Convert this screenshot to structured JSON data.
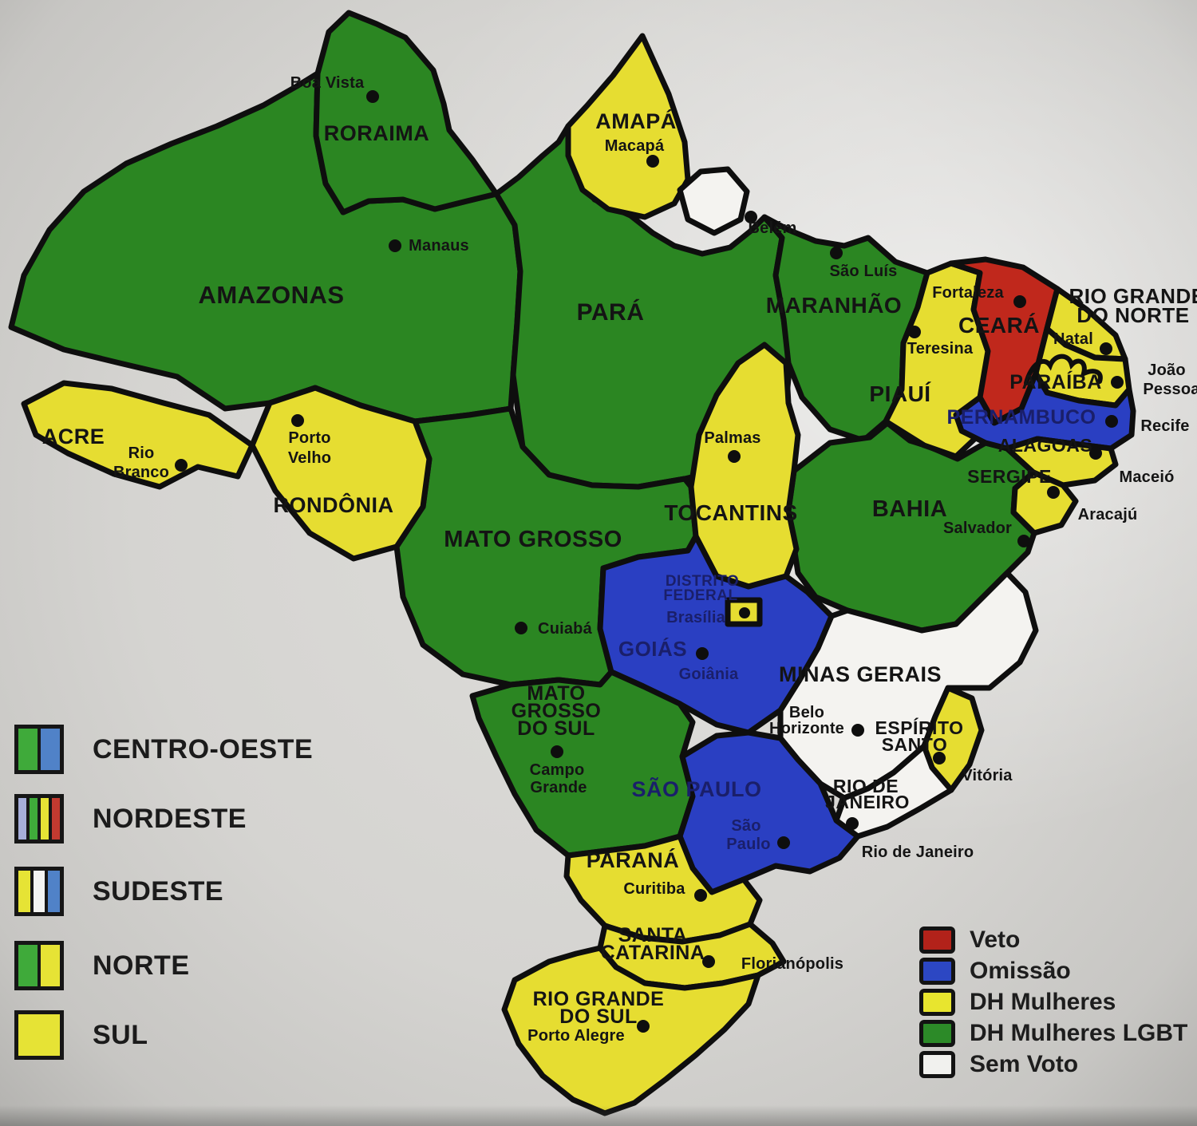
{
  "colors": {
    "veto": "#c0281c",
    "omissao": "#2a3fc2",
    "dh_mulheres": "#e6dd31",
    "dh_mulheres_lgbt": "#2b8622",
    "sem_voto": "#f4f3f0",
    "outline": "#0e0e0e"
  },
  "states": {
    "roraima": {
      "name": "RORAIMA",
      "category": "DH Mulheres LGBT"
    },
    "amazonas": {
      "name": "AMAZONAS",
      "category": "DH Mulheres LGBT"
    },
    "acre": {
      "name": "ACRE",
      "category": "DH Mulheres"
    },
    "rondonia": {
      "name": "RONDÔNIA",
      "category": "DH Mulheres"
    },
    "para": {
      "name": "PARÁ",
      "category": "DH Mulheres LGBT"
    },
    "amapa": {
      "name": "AMAPÁ",
      "category": "DH Mulheres"
    },
    "maranhao": {
      "name": "MARANHÃO",
      "category": "DH Mulheres LGBT"
    },
    "piaui": {
      "name": "PIAUÍ",
      "category": "DH Mulheres"
    },
    "ceara": {
      "name": "CEARÁ",
      "category": "Veto"
    },
    "rio_grande_do_norte": {
      "name_l1": "RIO GRANDE",
      "name_l2": "DO NORTE",
      "category": "DH Mulheres"
    },
    "paraiba": {
      "name": "PARAÍBA",
      "category": "DH Mulheres"
    },
    "pernambuco": {
      "name": "PERNAMBUCO",
      "category": "Omissão"
    },
    "alagoas": {
      "name": "ALAGOAS",
      "category": "DH Mulheres"
    },
    "sergipe": {
      "name": "SERGIPE",
      "category": "DH Mulheres"
    },
    "bahia": {
      "name": "BAHIA",
      "category": "DH Mulheres LGBT"
    },
    "tocantins": {
      "name": "TOCANTINS",
      "category": "DH Mulheres"
    },
    "mato_grosso": {
      "name": "MATO GROSSO",
      "category": "DH Mulheres LGBT"
    },
    "mato_grosso_do_sul": {
      "name_l1": "MATO",
      "name_l2": "GROSSO",
      "name_l3": "DO SUL",
      "category": "DH Mulheres LGBT"
    },
    "goias": {
      "name": "GOIÁS",
      "category": "Omissão"
    },
    "distrito_federal": {
      "name_l1": "DISTRITO",
      "name_l2": "FEDERAL",
      "category": "DH Mulheres"
    },
    "minas_gerais": {
      "name": "MINAS GERAIS",
      "category": "Sem Voto"
    },
    "espirito_santo": {
      "name_l1": "ESPÍRITO",
      "name_l2": "SANTO",
      "category": "DH Mulheres"
    },
    "rio_de_janeiro": {
      "name_l1": "RIO DE",
      "name_l2": "JANEIRO",
      "category": "Sem Voto"
    },
    "sao_paulo": {
      "name": "SÃO PAULO",
      "category": "Omissão"
    },
    "parana": {
      "name": "PARANÁ",
      "category": "DH Mulheres"
    },
    "santa_catarina": {
      "name_l1": "SANTA",
      "name_l2": "CATARINA",
      "category": "DH Mulheres"
    },
    "rio_grande_do_sul": {
      "name_l1": "RIO GRANDE",
      "name_l2": "DO SUL",
      "category": "DH Mulheres"
    }
  },
  "cities": {
    "boa_vista": {
      "name": "Boa Vista"
    },
    "manaus": {
      "name": "Manaus"
    },
    "rio_branco": {
      "name_l1": "Rio",
      "name_l2": "Branco"
    },
    "porto_velho": {
      "name_l1": "Porto",
      "name_l2": "Velho"
    },
    "macapa": {
      "name": "Macapá"
    },
    "belem": {
      "name": "Belém"
    },
    "sao_luis": {
      "name": "São Luís"
    },
    "teresina": {
      "name": "Teresina"
    },
    "fortaleza": {
      "name": "Fortaleza"
    },
    "natal": {
      "name": "Natal"
    },
    "joao_pessoa": {
      "name_l1": "João",
      "name_l2": "Pessoa"
    },
    "recife": {
      "name": "Recife"
    },
    "maceio": {
      "name": "Maceió"
    },
    "aracaju": {
      "name": "Aracajú"
    },
    "salvador": {
      "name": "Salvador"
    },
    "palmas": {
      "name": "Palmas"
    },
    "cuiaba": {
      "name": "Cuiabá"
    },
    "campo_grande": {
      "name_l1": "Campo",
      "name_l2": "Grande"
    },
    "goiania": {
      "name": "Goiânia"
    },
    "brasilia": {
      "name": "Brasília"
    },
    "belo_horizonte": {
      "name_l1": "Belo",
      "name_l2": "Horizonte"
    },
    "vitoria": {
      "name": "Vitória"
    },
    "rio_de_janeiro": {
      "name": "Rio de Janeiro"
    },
    "sao_paulo": {
      "name_l1": "São",
      "name_l2": "Paulo"
    },
    "curitiba": {
      "name": "Curitiba"
    },
    "florianopolis": {
      "name": "Florianópolis"
    },
    "porto_alegre": {
      "name": "Porto Alegre"
    }
  },
  "region_legend": {
    "items": [
      {
        "label": "CENTRO-OESTE",
        "bars": [
          "#3faa3a",
          "#5082c8"
        ]
      },
      {
        "label": "NORDESTE",
        "bars": [
          "#a6aeda",
          "#3faa3a",
          "#e6e335",
          "#c23a30"
        ]
      },
      {
        "label": "SUDESTE",
        "bars": [
          "#e6e335",
          "#f4f4f2",
          "#5082c8"
        ]
      },
      {
        "label": "NORTE",
        "bars": [
          "#3faa3a",
          "#e6e335"
        ]
      },
      {
        "label": "SUL",
        "bars": [
          "#e6e335"
        ]
      }
    ]
  },
  "category_legend": {
    "items": [
      {
        "label": "Veto",
        "color": "#b2221a"
      },
      {
        "label": "Omissão",
        "color": "#2c47c3"
      },
      {
        "label": "DH Mulheres",
        "color": "#e8e52e"
      },
      {
        "label": "DH Mulheres LGBT",
        "color": "#2c8a28"
      },
      {
        "label": "Sem Voto",
        "color": "#f1f1ee"
      }
    ]
  }
}
